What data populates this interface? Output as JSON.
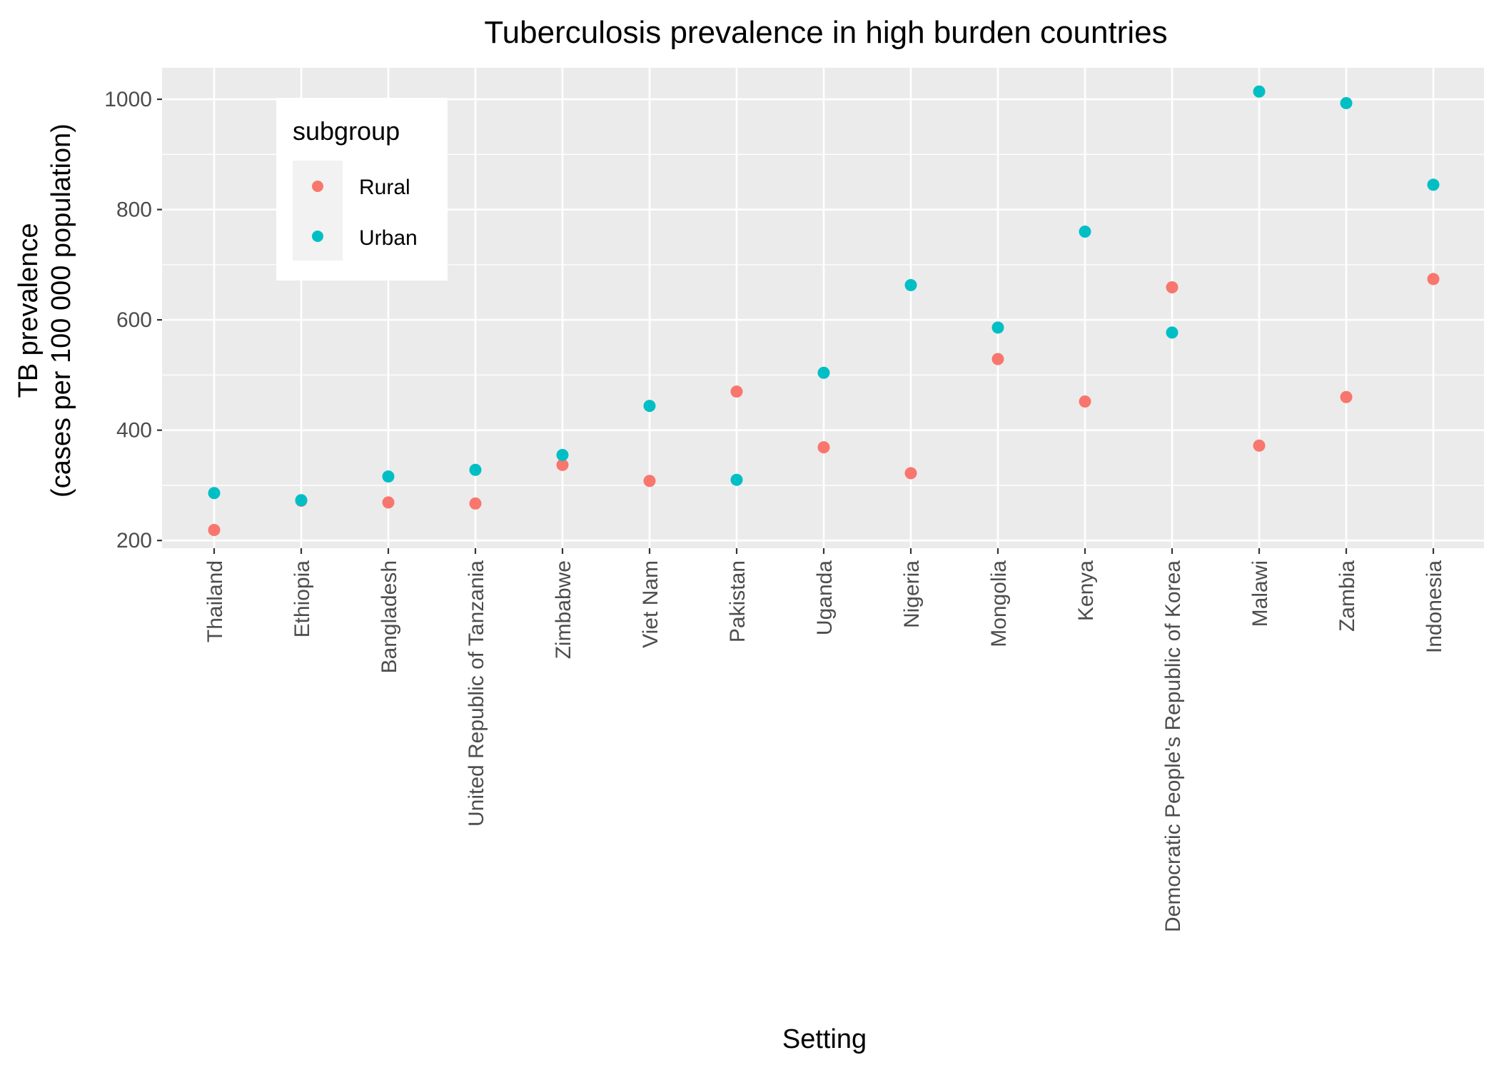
{
  "chart_data": {
    "type": "scatter",
    "title": "Tuberculosis prevalence in high burden countries",
    "xlabel": "Setting",
    "ylabel": [
      "TB prevalence",
      "(cases per 100 000 population)"
    ],
    "categories": [
      "Thailand",
      "Ethiopia",
      "Bangladesh",
      "United Republic of Tanzania",
      "Zimbabwe",
      "Viet Nam",
      "Pakistan",
      "Uganda",
      "Nigeria",
      "Mongolia",
      "Kenya",
      "Democratic People's Republic of Korea",
      "Malawi",
      "Zambia",
      "Indonesia"
    ],
    "ylim": [
      186,
      1057
    ],
    "yticks": [
      200,
      400,
      600,
      800,
      1000
    ],
    "grid": true,
    "legend": {
      "title": "subgroup",
      "position": "top-left inside"
    },
    "series": [
      {
        "name": "Rural",
        "color": "#F8766D",
        "values": [
          219,
          272,
          269,
          267,
          337,
          308,
          470,
          369,
          322,
          529,
          452,
          659,
          372,
          460,
          674
        ]
      },
      {
        "name": "Urban",
        "color": "#00BFC4",
        "values": [
          286,
          273,
          316,
          328,
          355,
          444,
          310,
          504,
          663,
          586,
          760,
          577,
          1014,
          993,
          845
        ]
      }
    ]
  }
}
